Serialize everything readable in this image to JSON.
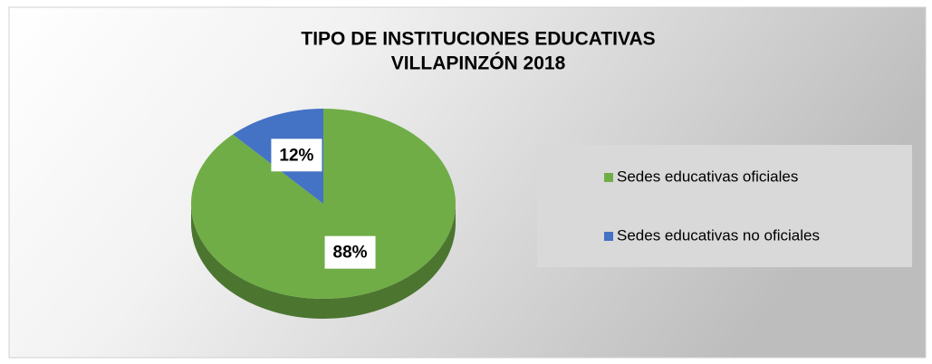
{
  "chart_data": {
    "type": "pie",
    "title": [
      "TIPO DE INSTITUCIONES EDUCATIVAS",
      "VILLAPINZÓN 2018"
    ],
    "categories": [
      "Sedes educativas oficiales",
      "Sedes educativas no oficiales"
    ],
    "values": [
      88,
      12
    ],
    "value_labels": [
      "88%",
      "12%"
    ],
    "colors": [
      "#70ad47",
      "#4472c4"
    ],
    "legend": "right"
  }
}
